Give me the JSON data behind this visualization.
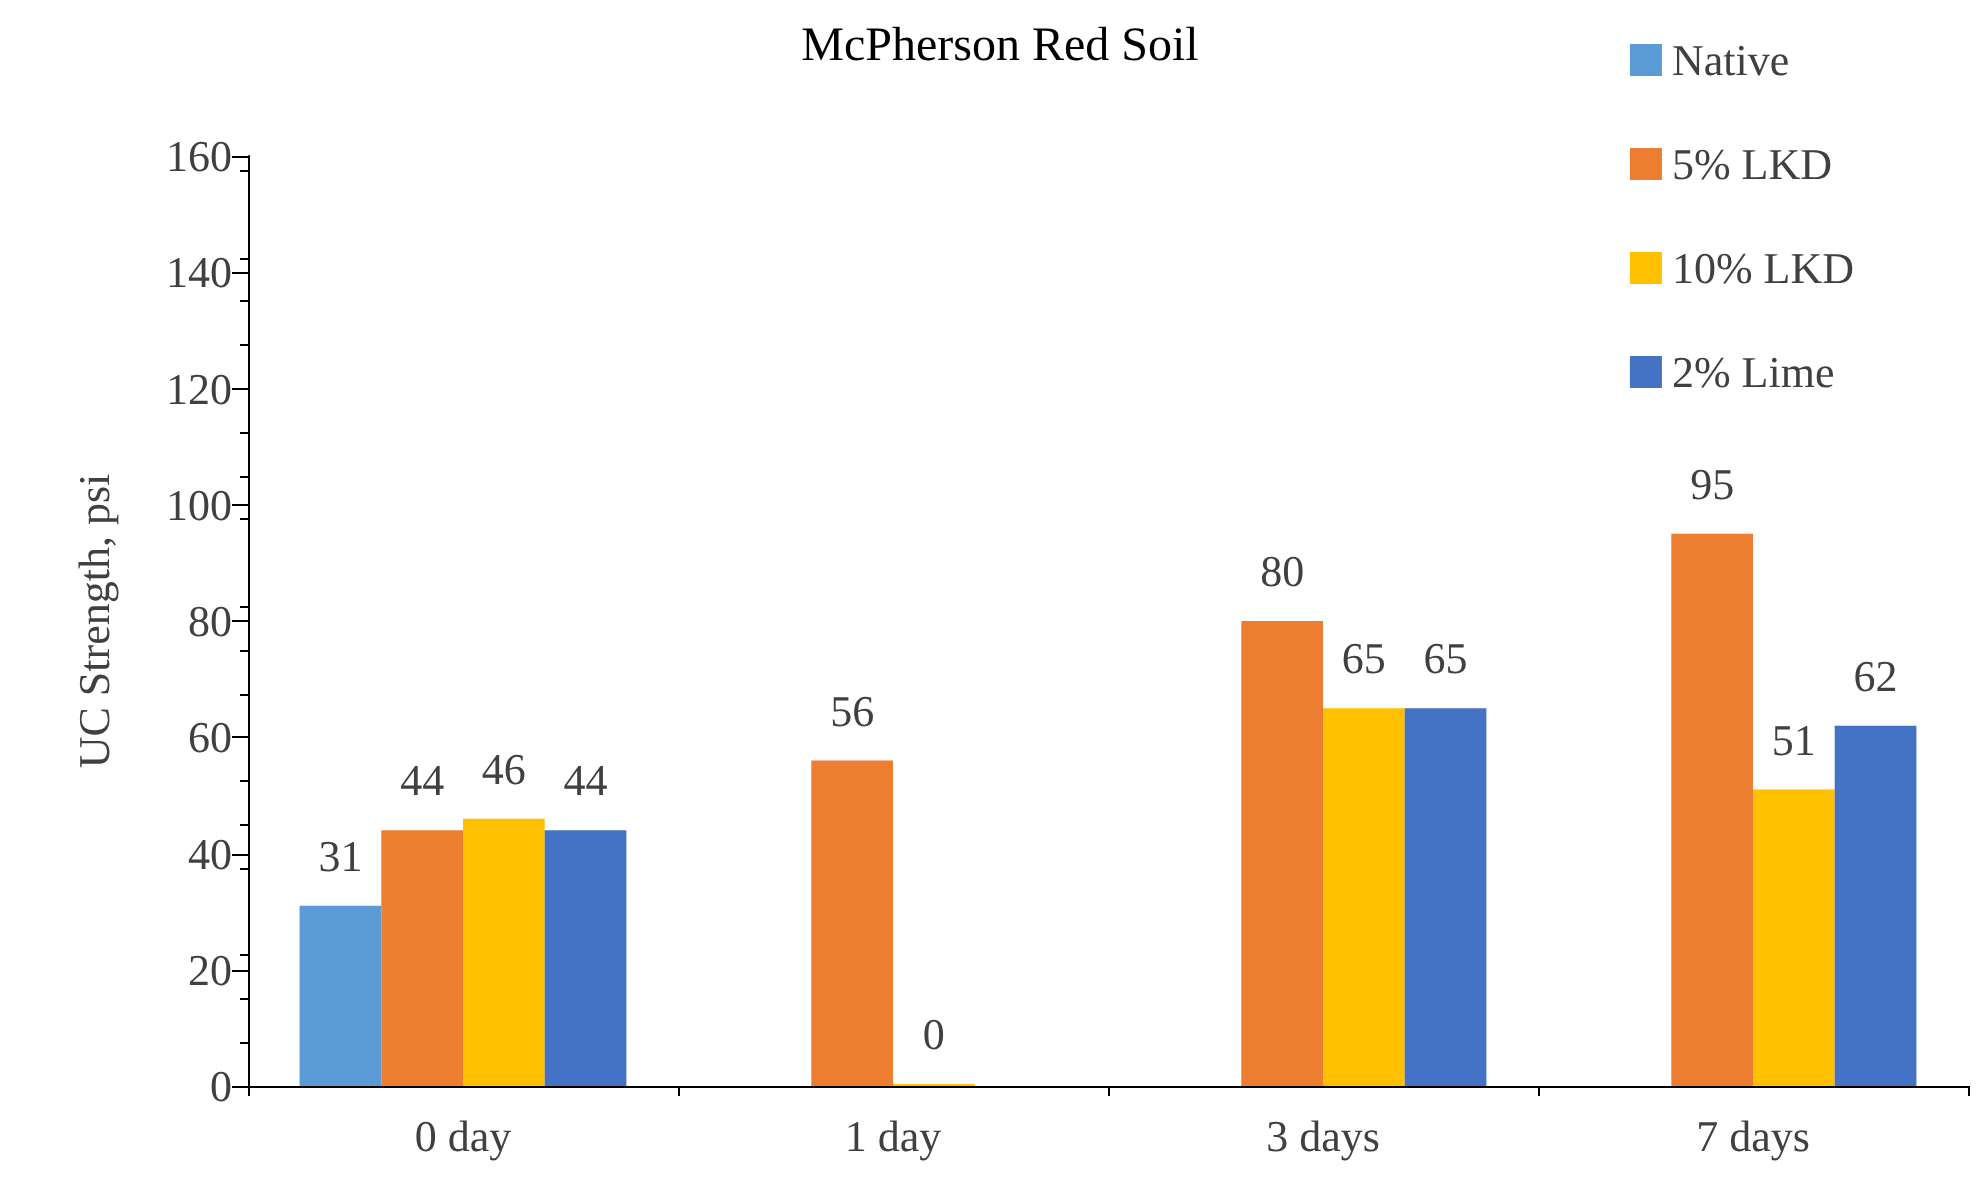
{
  "chart_data": {
    "type": "bar",
    "title": "McPherson Red Soil",
    "ylabel": "UC Strength, psi",
    "categories": [
      "0 day",
      "1 day",
      "3 days",
      "7 days"
    ],
    "series": [
      {
        "name": "Native",
        "color": "#5b9bd5",
        "values": [
          31,
          null,
          null,
          null
        ]
      },
      {
        "name": "5% LKD",
        "color": "#ed7d31",
        "values": [
          44,
          56,
          80,
          95
        ]
      },
      {
        "name": "10% LKD",
        "color": "#ffc000",
        "values": [
          46,
          0,
          65,
          51
        ]
      },
      {
        "name": "2% Lime",
        "color": "#4472c4",
        "values": [
          44,
          null,
          65,
          62
        ]
      }
    ],
    "ylim": [
      0,
      160
    ],
    "yticks": [
      0,
      20,
      40,
      60,
      80,
      100,
      120,
      140,
      160
    ],
    "grid": false,
    "legend": "top right",
    "data_labels": true
  }
}
